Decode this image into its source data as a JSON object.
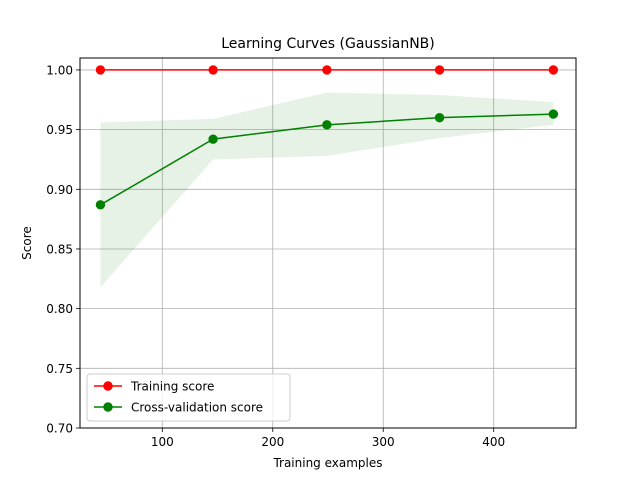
{
  "chart_data": {
    "type": "line",
    "title": "Learning Curves (GaussianNB)",
    "xlabel": "Training examples",
    "ylabel": "Score",
    "xlim": [
      25.5,
      474.5
    ],
    "ylim": [
      0.7,
      1.01
    ],
    "xticks": [
      100,
      200,
      300,
      400
    ],
    "xtick_labels": [
      "100",
      "200",
      "300",
      "400"
    ],
    "yticks": [
      0.7,
      0.75,
      0.8,
      0.85,
      0.9,
      0.95,
      1.0
    ],
    "ytick_labels": [
      "0.70",
      "0.75",
      "0.80",
      "0.85",
      "0.90",
      "0.95",
      "1.00"
    ],
    "grid": true,
    "legend": "lower left",
    "x": [
      44,
      146,
      249,
      351,
      454
    ],
    "series": [
      {
        "name": "Training score",
        "color": "#ff0000",
        "marker": "circle",
        "values": [
          1.0,
          1.0,
          1.0,
          1.0,
          1.0
        ],
        "band_lower": [
          1.0,
          1.0,
          1.0,
          1.0,
          1.0
        ],
        "band_upper": [
          1.0,
          1.0,
          1.0,
          1.0,
          1.0
        ],
        "band_color": "#ff0000"
      },
      {
        "name": "Cross-validation score",
        "color": "#008000",
        "marker": "circle",
        "values": [
          0.887,
          0.942,
          0.954,
          0.96,
          0.963
        ],
        "band_lower": [
          0.818,
          0.925,
          0.928,
          0.943,
          0.954
        ],
        "band_upper": [
          0.956,
          0.959,
          0.981,
          0.979,
          0.973
        ],
        "band_color": "#008000"
      }
    ]
  }
}
